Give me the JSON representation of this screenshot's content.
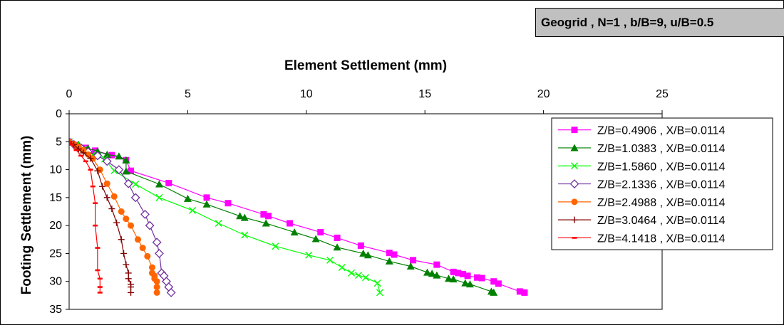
{
  "chart_data": {
    "type": "line",
    "tag": "Geogrid , N=1 , b/B=9, u/B=0.5",
    "title": "Element Settlement (mm)",
    "xlabel": "Element Settlement (mm)",
    "ylabel": "Footing Settlement (mm)",
    "xlim": [
      0,
      25
    ],
    "ylim": [
      0,
      35
    ],
    "y_reversed": true,
    "x_ticks": [
      "0",
      "5",
      "10",
      "15",
      "20",
      "25"
    ],
    "y_ticks": [
      "0",
      "5",
      "10",
      "15",
      "20",
      "25",
      "30",
      "35"
    ],
    "grid": false,
    "legend_position": "right",
    "series": [
      {
        "name": "Z/B=0.4906 , X/B=0.0114",
        "color": "#ff00ff",
        "marker": "square",
        "x": [
          0,
          0.3,
          0.7,
          1.1,
          1.8,
          2.4,
          2.6,
          4.2,
          5.8,
          6.7,
          8.2,
          8.4,
          9.3,
          10.6,
          11.3,
          12.3,
          13.5,
          13.7,
          14.5,
          15.5,
          16.2,
          16.4,
          16.6,
          16.8,
          17.2,
          17.4,
          17.9,
          18.1,
          19.0,
          19.2
        ],
        "y": [
          5,
          5.6,
          6.1,
          6.6,
          7.4,
          8.3,
          10.2,
          12.4,
          15.0,
          16.0,
          18.0,
          18.3,
          19.6,
          21.2,
          22.2,
          23.6,
          24.9,
          25.2,
          26.2,
          27.0,
          28.3,
          28.5,
          28.7,
          29.0,
          29.3,
          29.4,
          30.0,
          30.4,
          31.8,
          32.0
        ]
      },
      {
        "name": "Z/B=1.0383 , X/B=0.0114",
        "color": "#008000",
        "marker": "triangle",
        "x": [
          0,
          0.4,
          0.8,
          1.2,
          1.6,
          2.1,
          2.4,
          2.4,
          3.8,
          5.0,
          5.8,
          7.2,
          7.4,
          8.3,
          9.5,
          10.4,
          11.3,
          12.4,
          12.6,
          13.5,
          14.4,
          15.1,
          15.3,
          15.5,
          16.0,
          16.2,
          16.7,
          16.9,
          17.8,
          17.9
        ],
        "y": [
          5,
          5.5,
          6.2,
          6.7,
          7.3,
          7.6,
          8.3,
          10.3,
          12.6,
          15.2,
          16.2,
          18.3,
          18.6,
          19.6,
          21.2,
          22.4,
          23.9,
          25.0,
          25.3,
          26.4,
          27.3,
          28.4,
          28.6,
          28.9,
          29.5,
          29.6,
          30.3,
          30.5,
          31.8,
          32.0
        ]
      },
      {
        "name": "Z/B=1.5860 , X/B=0.0114",
        "color": "#00ff00",
        "marker": "x",
        "x": [
          0,
          0.3,
          0.6,
          1.0,
          1.5,
          1.9,
          2.8,
          3.8,
          5.2,
          6.3,
          7.4,
          8.7,
          10.1,
          11.0,
          11.5,
          11.9,
          12.2,
          12.5,
          13.0,
          13.1
        ],
        "y": [
          5,
          5.6,
          6.3,
          7.3,
          8.1,
          10.2,
          12.6,
          15.0,
          17.3,
          19.6,
          21.7,
          23.7,
          25.3,
          26.2,
          27.5,
          28.5,
          28.9,
          29.3,
          30.3,
          32.0
        ]
      },
      {
        "name": "Z/B=2.1336 , X/B=0.0114",
        "color": "#7030a0",
        "marker": "diamond",
        "x": [
          0,
          0.2,
          0.5,
          0.8,
          1.2,
          1.6,
          2.1,
          2.5,
          2.8,
          3.2,
          3.4,
          3.7,
          3.8,
          3.9,
          4.0,
          4.1,
          4.2,
          4.3
        ],
        "y": [
          5,
          5.5,
          6.1,
          6.8,
          7.5,
          8.5,
          10.0,
          12.5,
          15.0,
          18.0,
          20.0,
          23.0,
          25.0,
          28.5,
          29.0,
          30.0,
          31.0,
          32.0
        ]
      },
      {
        "name": "Z/B=2.4988 , X/B=0.0114",
        "color": "#ff6600",
        "marker": "circle",
        "x": [
          0,
          0.2,
          0.4,
          0.6,
          0.8,
          1.0,
          1.3,
          1.6,
          1.9,
          2.2,
          2.4,
          2.6,
          2.9,
          3.1,
          3.3,
          3.5,
          3.5,
          3.6,
          3.6,
          3.7,
          3.7,
          3.7
        ],
        "y": [
          5,
          5.4,
          5.9,
          6.5,
          7.3,
          8.0,
          10.0,
          12.5,
          14.8,
          17.5,
          18.8,
          20.0,
          22.5,
          24.0,
          25.5,
          27.5,
          28.5,
          29.0,
          29.5,
          30.0,
          31.0,
          32.0
        ]
      },
      {
        "name": "Z/B=3.0464 , X/B=0.0114",
        "color": "#800000",
        "marker": "plus",
        "x": [
          0,
          0.2,
          0.4,
          0.6,
          0.9,
          1.2,
          1.4,
          1.6,
          1.8,
          2.0,
          2.2,
          2.3,
          2.4,
          2.5,
          2.5,
          2.6,
          2.6,
          2.6
        ],
        "y": [
          5,
          5.5,
          6.3,
          7.0,
          8.0,
          10.2,
          13.0,
          15.0,
          17.0,
          19.5,
          22.5,
          25.0,
          27.0,
          28.5,
          29.5,
          30.5,
          31.0,
          32.0
        ]
      },
      {
        "name": "Z/B=4.1418 , X/B=0.0114",
        "color": "#ff0000",
        "marker": "dash",
        "x": [
          0,
          0.1,
          0.3,
          0.5,
          0.7,
          0.9,
          1.0,
          1.1,
          1.1,
          1.2,
          1.2,
          1.3,
          1.3,
          1.3
        ],
        "y": [
          5,
          5.5,
          6.5,
          7.5,
          8.5,
          10.0,
          13.0,
          16.0,
          20.0,
          24.0,
          28.0,
          29.5,
          31.0,
          32.0
        ]
      }
    ]
  }
}
